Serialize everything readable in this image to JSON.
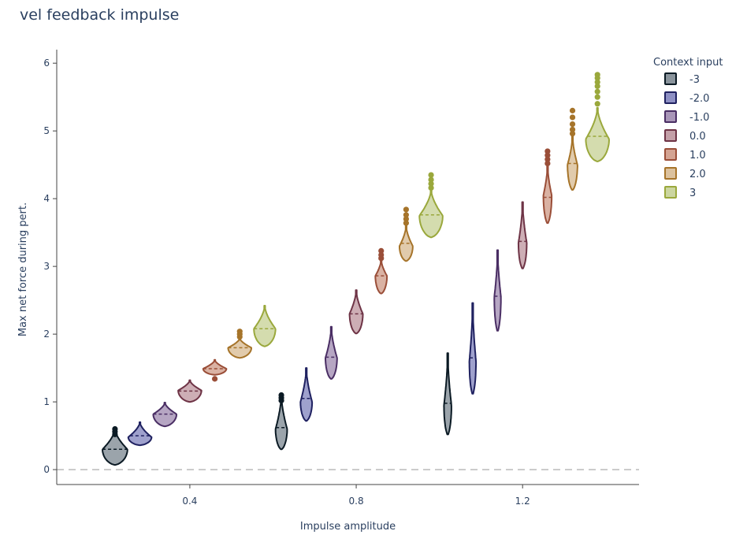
{
  "chart_data": {
    "type": "violin",
    "title": "vel feedback impulse",
    "xlabel": "Impulse amplitude",
    "ylabel": "Max net force during pert.",
    "xlim": [
      0.08,
      1.48
    ],
    "ylim": [
      -0.22,
      6.2
    ],
    "xticks": [
      0.4,
      0.8,
      1.2
    ],
    "xtick_labels": [
      "0.4",
      "0.8",
      "1.2"
    ],
    "yticks": [
      0,
      1,
      2,
      3,
      4,
      5,
      6
    ],
    "ytick_labels": [
      "0",
      "1",
      "2",
      "3",
      "4",
      "5",
      "6"
    ],
    "reference_line_y": 0,
    "legend_title": "Context input",
    "legend_position": "right",
    "series": [
      {
        "name": "-3",
        "fill": "#8a949c",
        "line": "#0b1a24",
        "violins": [
          {
            "x": 0.22,
            "min": 0.07,
            "max": 0.6,
            "median": 0.3,
            "peak": 0.3,
            "halfwidth": 0.03,
            "outliers": [
              0.52,
              0.56,
              0.6
            ]
          },
          {
            "x": 0.62,
            "min": 0.3,
            "max": 1.1,
            "median": 0.62,
            "peak": 0.6,
            "halfwidth": 0.014,
            "outliers": [
              1.02,
              1.06,
              1.1
            ]
          },
          {
            "x": 1.02,
            "min": 0.52,
            "max": 1.72,
            "median": 0.98,
            "peak": 0.95,
            "halfwidth": 0.009,
            "outliers": []
          }
        ]
      },
      {
        "name": "-2.0",
        "fill": "#8e90c4",
        "line": "#1f2160",
        "violins": [
          {
            "x": 0.28,
            "min": 0.36,
            "max": 0.7,
            "median": 0.5,
            "peak": 0.48,
            "halfwidth": 0.028,
            "outliers": []
          },
          {
            "x": 0.68,
            "min": 0.72,
            "max": 1.5,
            "median": 1.05,
            "peak": 1.0,
            "halfwidth": 0.014,
            "outliers": []
          },
          {
            "x": 1.08,
            "min": 1.12,
            "max": 2.46,
            "median": 1.65,
            "peak": 1.6,
            "halfwidth": 0.008,
            "outliers": []
          }
        ]
      },
      {
        "name": "-1.0",
        "fill": "#a996b8",
        "line": "#4a2e64",
        "violins": [
          {
            "x": 0.34,
            "min": 0.64,
            "max": 0.99,
            "median": 0.82,
            "peak": 0.82,
            "halfwidth": 0.028,
            "outliers": []
          },
          {
            "x": 0.74,
            "min": 1.34,
            "max": 2.11,
            "median": 1.66,
            "peak": 1.65,
            "halfwidth": 0.014,
            "outliers": []
          },
          {
            "x": 1.14,
            "min": 2.05,
            "max": 3.24,
            "median": 2.56,
            "peak": 2.55,
            "halfwidth": 0.008,
            "outliers": []
          }
        ]
      },
      {
        "name": "0.0",
        "fill": "#c4a0a8",
        "line": "#6e3446",
        "violins": [
          {
            "x": 0.4,
            "min": 1.0,
            "max": 1.32,
            "median": 1.16,
            "peak": 1.17,
            "halfwidth": 0.028,
            "outliers": []
          },
          {
            "x": 0.8,
            "min": 2.01,
            "max": 2.65,
            "median": 2.3,
            "peak": 2.3,
            "halfwidth": 0.016,
            "outliers": []
          },
          {
            "x": 1.2,
            "min": 2.97,
            "max": 3.95,
            "median": 3.37,
            "peak": 3.35,
            "halfwidth": 0.01,
            "outliers": []
          }
        ]
      },
      {
        "name": "1.0",
        "fill": "#d4a493",
        "line": "#9a4e38",
        "violins": [
          {
            "x": 0.46,
            "min": 1.4,
            "max": 1.62,
            "median": 1.49,
            "peak": 1.49,
            "halfwidth": 0.028,
            "outliers": [
              1.34
            ]
          },
          {
            "x": 0.86,
            "min": 2.6,
            "max": 3.1,
            "median": 2.86,
            "peak": 2.86,
            "halfwidth": 0.014,
            "outliers": [
              3.12,
              3.17,
              3.23
            ]
          },
          {
            "x": 1.26,
            "min": 3.64,
            "max": 4.5,
            "median": 4.02,
            "peak": 4.05,
            "halfwidth": 0.01,
            "outliers": [
              4.52,
              4.58,
              4.64,
              4.7
            ]
          }
        ]
      },
      {
        "name": "2.0",
        "fill": "#dcc29e",
        "line": "#a6742a",
        "violins": [
          {
            "x": 0.52,
            "min": 1.65,
            "max": 1.94,
            "median": 1.8,
            "peak": 1.8,
            "halfwidth": 0.028,
            "outliers": [
              1.96,
              2.0,
              2.04
            ]
          },
          {
            "x": 0.92,
            "min": 3.08,
            "max": 3.6,
            "median": 3.34,
            "peak": 3.3,
            "halfwidth": 0.016,
            "outliers": [
              3.64,
              3.7,
              3.76,
              3.84
            ]
          },
          {
            "x": 1.32,
            "min": 4.13,
            "max": 4.93,
            "median": 4.52,
            "peak": 4.5,
            "halfwidth": 0.012,
            "outliers": [
              4.96,
              5.02,
              5.1,
              5.2,
              5.3
            ]
          }
        ]
      },
      {
        "name": "3",
        "fill": "#ccd6a0",
        "line": "#9aa83c",
        "violins": [
          {
            "x": 0.58,
            "min": 1.82,
            "max": 2.42,
            "median": 2.08,
            "peak": 2.08,
            "halfwidth": 0.026,
            "outliers": []
          },
          {
            "x": 0.98,
            "min": 3.43,
            "max": 4.13,
            "median": 3.76,
            "peak": 3.75,
            "halfwidth": 0.028,
            "outliers": [
              4.16,
              4.22,
              4.28,
              4.35
            ]
          },
          {
            "x": 1.38,
            "min": 4.55,
            "max": 5.34,
            "median": 4.92,
            "peak": 4.88,
            "halfwidth": 0.028,
            "outliers": [
              5.4,
              5.5,
              5.58,
              5.66,
              5.72,
              5.78,
              5.83
            ]
          }
        ]
      }
    ]
  }
}
